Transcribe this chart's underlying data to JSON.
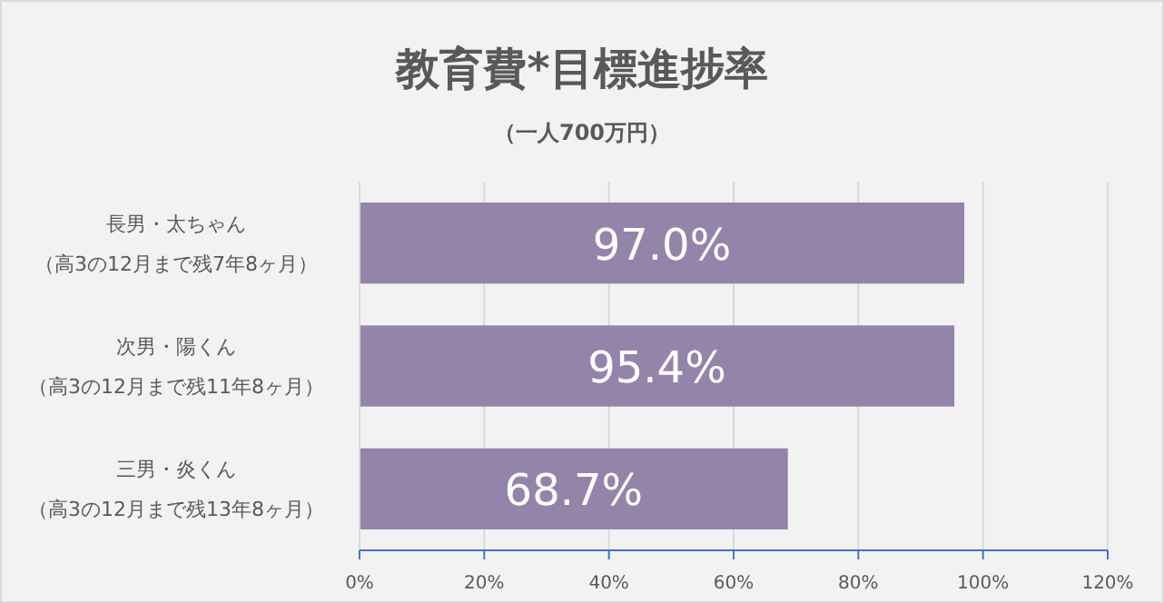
{
  "chart_data": {
    "type": "bar",
    "orientation": "horizontal",
    "title": "教育費*目標進捗率",
    "subtitle": "（一人700万円）",
    "categories": [
      "長男・太ちゃん（高3の12月まで残7年8ヶ月）",
      "次男・陽くん（高3の12月まで残11年8ヶ月）",
      "三男・炎くん（高3の12月まで残13年8ヶ月）"
    ],
    "values": [
      97.0,
      95.4,
      68.7
    ],
    "value_labels": [
      "97.0%",
      "95.4%",
      "68.7%"
    ],
    "color": "#9584a9",
    "xlim": [
      0,
      120
    ],
    "xticks": [
      {
        "value": 0,
        "label": "0%"
      },
      {
        "value": 20,
        "label": "20%"
      },
      {
        "value": 40,
        "label": "40%"
      },
      {
        "value": 60,
        "label": "60%"
      },
      {
        "value": 80,
        "label": "80%"
      },
      {
        "value": 100,
        "label": "100%"
      },
      {
        "value": 120,
        "label": "120%"
      }
    ],
    "grid": "x"
  }
}
